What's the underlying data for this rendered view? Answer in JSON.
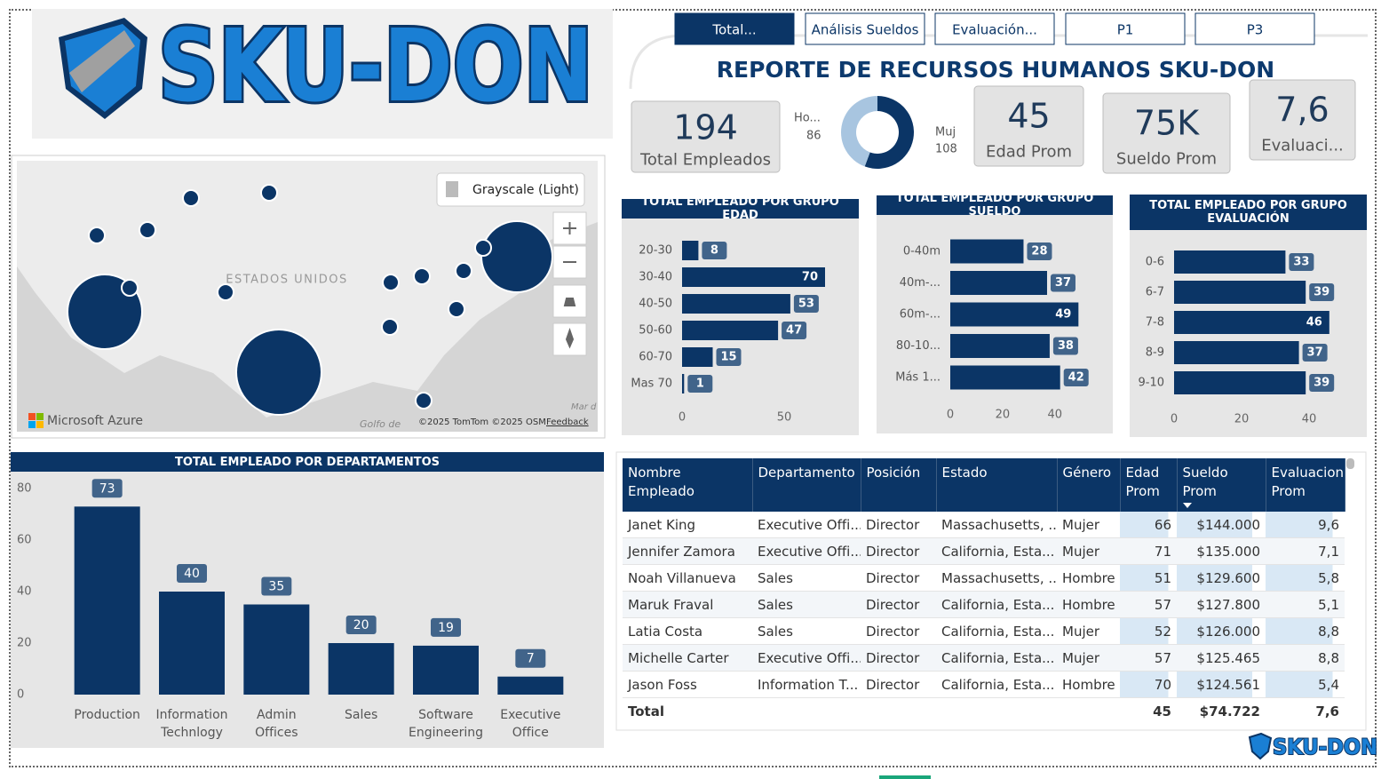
{
  "logo": {
    "text": "SKU-DON"
  },
  "tabs": [
    "Total...",
    "Análisis Sueldos",
    "Evaluación...",
    "P1",
    "P3"
  ],
  "report_title": "REPORTE DE RECURSOS HUMANOS SKU-DON",
  "kpis": [
    {
      "value": "194",
      "label": "Total Empleados"
    },
    {
      "value": "45",
      "label": "Edad Prom"
    },
    {
      "value": "75K",
      "label": "Sueldo Prom"
    },
    {
      "value": "7,6",
      "label": "Evaluaci..."
    }
  ],
  "map": {
    "style_button": "Grayscale (Light)",
    "country": "ESTADOS UNIDOS",
    "provider": "Microsoft Azure",
    "copyright": "©2025 TomTom ©2025 OSM",
    "feedback": "Feedback",
    "gulf": "Golfo de",
    "sea": "Mar d"
  },
  "chart_data": [
    {
      "type": "pie",
      "categories": [
        "Ho...",
        "Muj"
      ],
      "values": [
        86,
        108
      ],
      "colors": [
        "#a8c5e0",
        "#0b3566"
      ]
    },
    {
      "type": "hbar",
      "title": "TOTAL EMPLEADO POR GRUPO EDAD",
      "categories": [
        "20-30",
        "30-40",
        "40-50",
        "50-60",
        "60-70",
        "Mas 70"
      ],
      "values": [
        8,
        70,
        53,
        47,
        15,
        1
      ],
      "color": "#0b3566",
      "xlim": [
        0,
        80
      ],
      "xticks": [
        0,
        50
      ]
    },
    {
      "type": "hbar",
      "title": "TOTAL EMPLEADO POR GRUPO SUELDO",
      "categories": [
        "0-40m",
        "40m-...",
        "60m-...",
        "80-10...",
        "Más 1..."
      ],
      "values": [
        28,
        37,
        49,
        38,
        42
      ],
      "color": "#0b3566",
      "xlim": [
        0,
        55
      ],
      "xticks": [
        0,
        20,
        40
      ]
    },
    {
      "type": "hbar",
      "title": "TOTAL EMPLEADO POR GRUPO EVALUACIÓN",
      "categories": [
        "0-6",
        "6-7",
        "7-8",
        "8-9",
        "9-10"
      ],
      "values": [
        33,
        39,
        46,
        37,
        39
      ],
      "color": "#0b3566",
      "xlim": [
        0,
        50
      ],
      "xticks": [
        0,
        20,
        40
      ]
    },
    {
      "type": "bar",
      "title": "TOTAL EMPLEADO POR DEPARTAMENTOS",
      "categories": [
        "Production",
        "Information Technlogy",
        "Admin Offices",
        "Sales",
        "Software Engineering",
        "Executive Office"
      ],
      "values": [
        73,
        40,
        35,
        20,
        19,
        7
      ],
      "color": "#0b3566",
      "ylim": [
        0,
        80
      ],
      "yticks": [
        0,
        20,
        40,
        60,
        80
      ]
    }
  ],
  "table": {
    "columns": [
      "Nombre Empleado",
      "Departamento",
      "Posición",
      "Estado",
      "Género",
      "Edad Prom",
      "Sueldo Prom",
      "Evaluacion Prom"
    ],
    "rows": [
      [
        "Janet King",
        "Executive Offi...",
        "Director",
        "Massachusetts, ...",
        "Mujer",
        "66",
        "$144.000",
        "9,6"
      ],
      [
        "Jennifer Zamora",
        "Executive Offi...",
        "Director",
        "California, Esta...",
        "Mujer",
        "71",
        "$135.000",
        "7,1"
      ],
      [
        "Noah Villanueva",
        "Sales",
        "Director",
        "Massachusetts, ...",
        "Hombre",
        "51",
        "$129.600",
        "5,8"
      ],
      [
        "Maruk Fraval",
        "Sales",
        "Director",
        "California, Esta...",
        "Hombre",
        "57",
        "$127.800",
        "5,1"
      ],
      [
        "Latia Costa",
        "Sales",
        "Director",
        "California, Esta...",
        "Mujer",
        "52",
        "$126.000",
        "8,8"
      ],
      [
        "Michelle Carter",
        "Executive Offi...",
        "Director",
        "California, Esta...",
        "Mujer",
        "57",
        "$125.465",
        "8,8"
      ],
      [
        "Jason Foss",
        "Information T...",
        "Director",
        "California, Esta...",
        "Hombre",
        "70",
        "$124.561",
        "5,4"
      ]
    ],
    "total": {
      "label": "Total",
      "edad": "45",
      "sueldo": "$74.722",
      "evaluacion": "7,6"
    }
  },
  "footer_logo": "SKU-DON"
}
